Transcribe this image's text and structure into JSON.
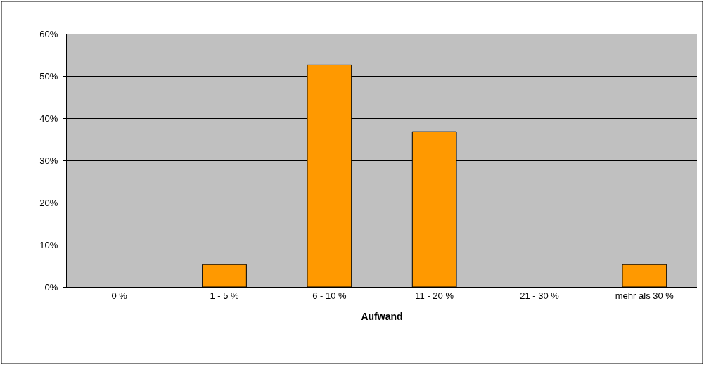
{
  "chart_data": {
    "type": "bar",
    "xlabel": "Aufwand",
    "categories": [
      "0 %",
      "1 - 5 %",
      "6 - 10 %",
      "11 - 20 %",
      "21 - 30 %",
      "mehr als 30 %"
    ],
    "values": [
      0,
      5.3,
      52.6,
      36.8,
      0,
      5.3
    ],
    "color": "#ff9900",
    "ylim": [
      0,
      60
    ],
    "yticks": [
      {
        "value": 0,
        "label": "0%"
      },
      {
        "value": 10,
        "label": "10%"
      },
      {
        "value": 20,
        "label": "20%"
      },
      {
        "value": 30,
        "label": "30%"
      },
      {
        "value": 40,
        "label": "40%"
      },
      {
        "value": 50,
        "label": "50%"
      },
      {
        "value": 60,
        "label": "60%"
      }
    ],
    "grid": "y"
  }
}
